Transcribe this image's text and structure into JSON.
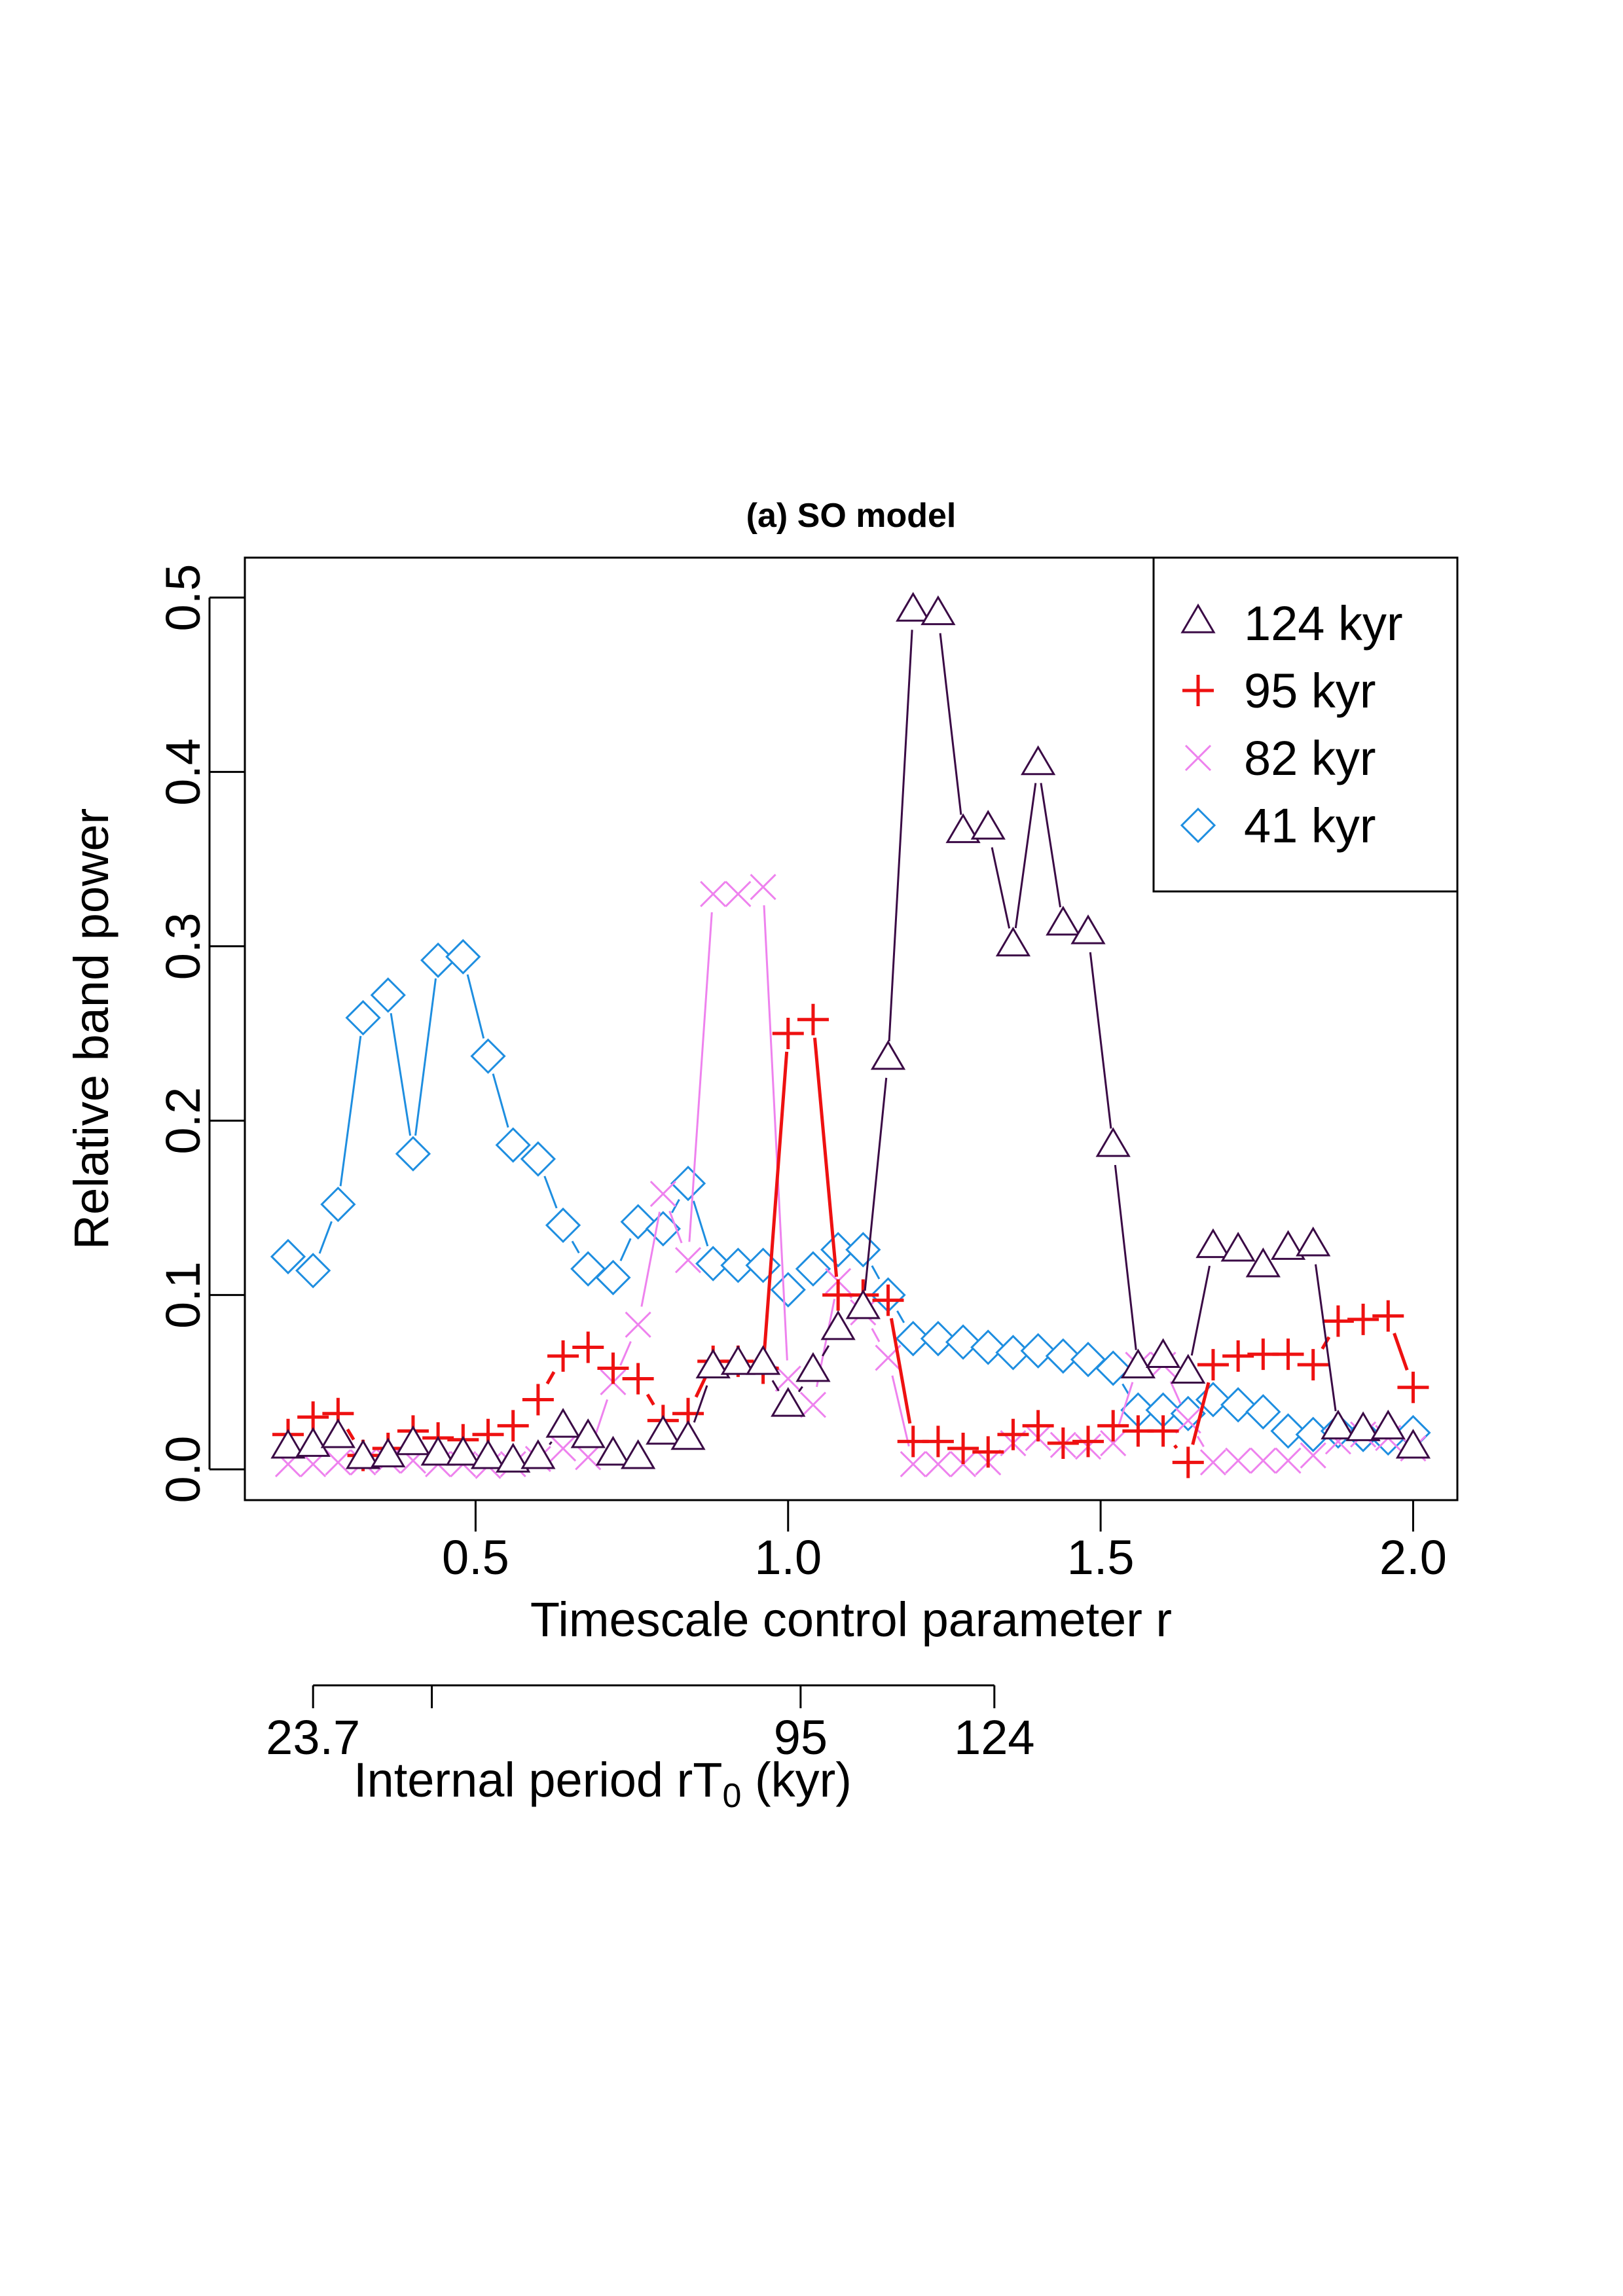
{
  "chart_data": {
    "type": "line",
    "title": "(a) SO model",
    "xlabel": "Timescale control parameter r",
    "ylabel": "Relative band power",
    "xlim": [
      0.2,
      2.0
    ],
    "ylim": [
      0.0,
      0.5
    ],
    "xticks": [
      "0.5",
      "1.0",
      "1.5",
      "2.0"
    ],
    "yticks": [
      "0.0",
      "0.1",
      "0.2",
      "0.3",
      "0.4",
      "0.5"
    ],
    "legend_position": "top-right",
    "secondary_axis": {
      "label_prefix": "Internal period rT",
      "label_sub": "0",
      "label_suffix": " (kyr)",
      "ticks": [
        {
          "r": 0.24,
          "label": "23.7"
        },
        {
          "r": 0.43,
          "label": ""
        },
        {
          "r": 1.02,
          "label": "95"
        },
        {
          "r": 1.33,
          "label": "124"
        }
      ]
    },
    "x": [
      0.2,
      0.24,
      0.28,
      0.32,
      0.36,
      0.4,
      0.44,
      0.48,
      0.52,
      0.56,
      0.6,
      0.64,
      0.68,
      0.72,
      0.76,
      0.8,
      0.84,
      0.88,
      0.92,
      0.96,
      1.0,
      1.04,
      1.08,
      1.12,
      1.16,
      1.2,
      1.24,
      1.28,
      1.32,
      1.36,
      1.4,
      1.44,
      1.48,
      1.52,
      1.56,
      1.6,
      1.64,
      1.68,
      1.72,
      1.76,
      1.8,
      1.84,
      1.88,
      1.92,
      1.96,
      2.0
    ],
    "series": [
      {
        "name": "124 kyr",
        "marker": "triangle",
        "color": "#3a0a45",
        "lw": 3,
        "values": [
          0.012,
          0.013,
          0.018,
          0.006,
          0.007,
          0.014,
          0.008,
          0.008,
          0.006,
          0.004,
          0.006,
          0.024,
          0.018,
          0.008,
          0.006,
          0.02,
          0.017,
          0.058,
          0.06,
          0.06,
          0.036,
          0.056,
          0.08,
          0.092,
          0.235,
          0.492,
          0.49,
          0.365,
          0.367,
          0.3,
          0.404,
          0.312,
          0.307,
          0.185,
          0.058,
          0.064,
          0.055,
          0.127,
          0.125,
          0.116,
          0.126,
          0.128,
          0.023,
          0.022,
          0.023,
          0.012
        ]
      },
      {
        "name": "95 kyr",
        "marker": "plus",
        "color": "#ee1111",
        "lw": 5,
        "values": [
          0.02,
          0.03,
          0.032,
          0.008,
          0.012,
          0.022,
          0.018,
          0.017,
          0.02,
          0.025,
          0.04,
          0.065,
          0.07,
          0.058,
          0.052,
          0.028,
          0.032,
          0.062,
          0.062,
          0.058,
          0.25,
          0.258,
          0.1,
          0.1,
          0.097,
          0.016,
          0.016,
          0.012,
          0.01,
          0.02,
          0.025,
          0.015,
          0.016,
          0.025,
          0.022,
          0.022,
          0.004,
          0.06,
          0.065,
          0.066,
          0.066,
          0.06,
          0.085,
          0.086,
          0.088,
          0.047
        ]
      },
      {
        "name": "82 kyr",
        "marker": "cross",
        "color": "#ee82ee",
        "lw": 3,
        "values": [
          0.003,
          0.003,
          0.004,
          0.004,
          0.005,
          0.005,
          0.003,
          0.003,
          0.002,
          0.003,
          0.006,
          0.012,
          0.007,
          0.05,
          0.083,
          0.158,
          0.12,
          0.33,
          0.33,
          0.334,
          0.052,
          0.037,
          0.108,
          0.09,
          0.064,
          0.003,
          0.003,
          0.003,
          0.004,
          0.015,
          0.018,
          0.014,
          0.013,
          0.015,
          0.06,
          0.06,
          0.028,
          0.004,
          0.005,
          0.005,
          0.005,
          0.008,
          0.016,
          0.02,
          0.018,
          0.012
        ]
      },
      {
        "name": "41 kyr",
        "marker": "diamond",
        "color": "#1e8ee0",
        "lw": 3,
        "values": [
          0.122,
          0.114,
          0.152,
          0.259,
          0.272,
          0.181,
          0.292,
          0.294,
          0.237,
          0.186,
          0.178,
          0.14,
          0.115,
          0.11,
          0.142,
          0.138,
          0.164,
          0.118,
          0.117,
          0.117,
          0.103,
          0.115,
          0.126,
          0.126,
          0.1,
          0.075,
          0.075,
          0.073,
          0.07,
          0.067,
          0.068,
          0.065,
          0.063,
          0.058,
          0.034,
          0.034,
          0.032,
          0.04,
          0.037,
          0.033,
          0.022,
          0.02,
          0.022,
          0.02,
          0.018,
          0.021
        ]
      }
    ]
  }
}
